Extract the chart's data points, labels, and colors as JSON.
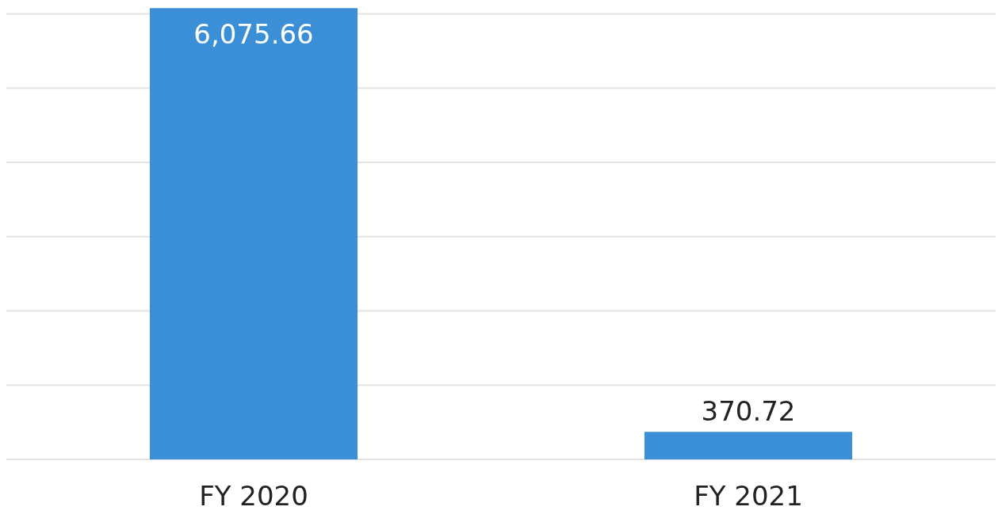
{
  "chart_data": {
    "type": "bar",
    "categories": [
      "FY 2020",
      "FY 2021"
    ],
    "values": [
      6075.66,
      370.72
    ],
    "color": "#3a8fd6",
    "value_labels": [
      "6,075.66",
      "370.72"
    ],
    "ylim": [
      0,
      6100
    ],
    "yticks": [
      {
        "value": 0,
        "label": null
      },
      {
        "value": 1000,
        "label": null
      },
      {
        "value": 2000,
        "label": null
      },
      {
        "value": 3000,
        "label": null
      },
      {
        "value": 4000,
        "label": null
      },
      {
        "value": 5000,
        "label": null
      },
      {
        "value": 6000,
        "label": null
      }
    ],
    "grid": "y",
    "tick_labels": "x"
  }
}
